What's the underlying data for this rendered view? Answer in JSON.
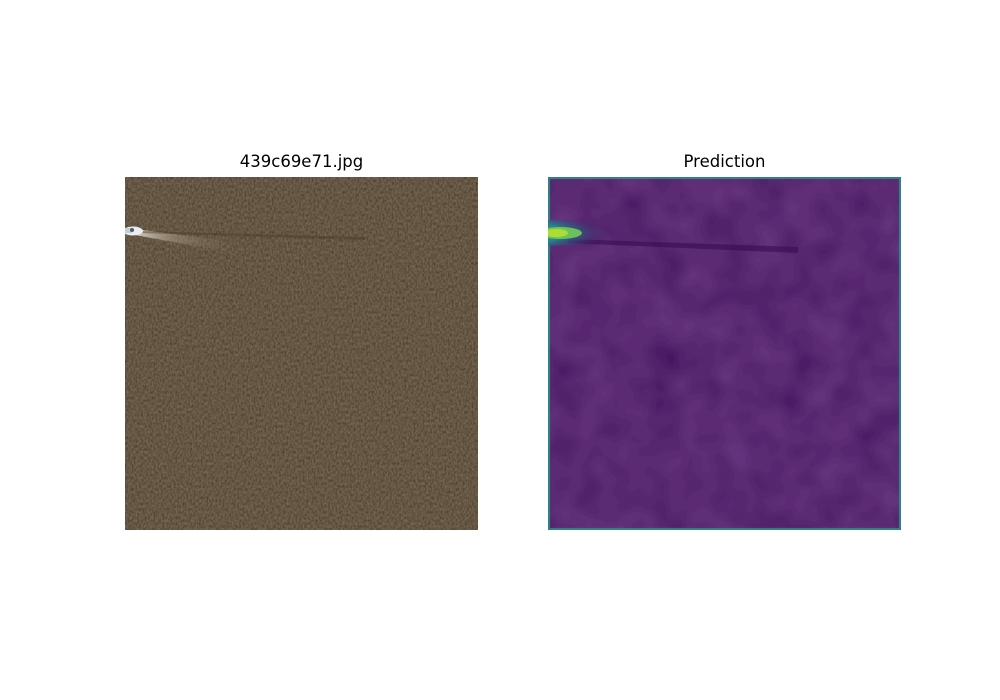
{
  "figure": {
    "panels": [
      {
        "title": "439c69e71.jpg",
        "content": "satellite-image",
        "palette": {
          "water": "#3f2f1a",
          "water_light": "#5a4630",
          "vessel": "#e9edf0",
          "wake": "#8a7a62"
        }
      },
      {
        "title": "Prediction",
        "content": "prediction-heatmap",
        "palette": {
          "background": "#44115f",
          "background_dark": "#3b0c55",
          "edge": "#2c8f8a",
          "hot_core": "#b6de2b",
          "hot_mid": "#35b779",
          "hot_outer": "#26828e"
        }
      }
    ]
  }
}
